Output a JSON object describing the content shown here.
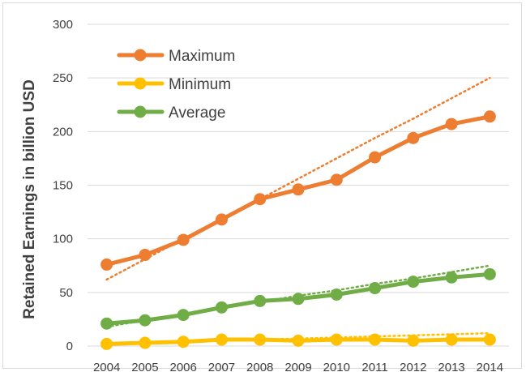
{
  "chart_data": {
    "type": "line",
    "title": "",
    "xlabel": "",
    "ylabel": "Retained Earnings in billion USD",
    "ylim": [
      0,
      300
    ],
    "yticks": [
      0,
      50,
      100,
      150,
      200,
      250,
      300
    ],
    "x": [
      "2004",
      "2005",
      "2006",
      "2007",
      "2008",
      "2009",
      "2010",
      "2011",
      "2012",
      "2013",
      "2014"
    ],
    "grid": true,
    "legend_position": "top-left",
    "series": [
      {
        "name": "Maximum",
        "color": "#ED7D31",
        "values": [
          76,
          85,
          99,
          118,
          137,
          146,
          155,
          176,
          194,
          207,
          214
        ],
        "trendline": [
          62,
          81,
          100,
          119,
          137,
          156,
          175,
          194,
          212,
          231,
          250
        ]
      },
      {
        "name": "Minimum",
        "color": "#FFC000",
        "values": [
          2,
          3,
          4,
          6,
          6,
          5,
          6,
          6,
          5,
          6,
          6
        ],
        "trendline": [
          2,
          3,
          4,
          5,
          6,
          7,
          8,
          9,
          10,
          11,
          12
        ]
      },
      {
        "name": "Average",
        "color": "#70AD47",
        "values": [
          21,
          24,
          29,
          36,
          42,
          44,
          48,
          54,
          60,
          64,
          67
        ],
        "trendline": [
          18,
          24,
          30,
          36,
          41,
          47,
          52,
          58,
          63,
          69,
          75
        ]
      }
    ]
  }
}
